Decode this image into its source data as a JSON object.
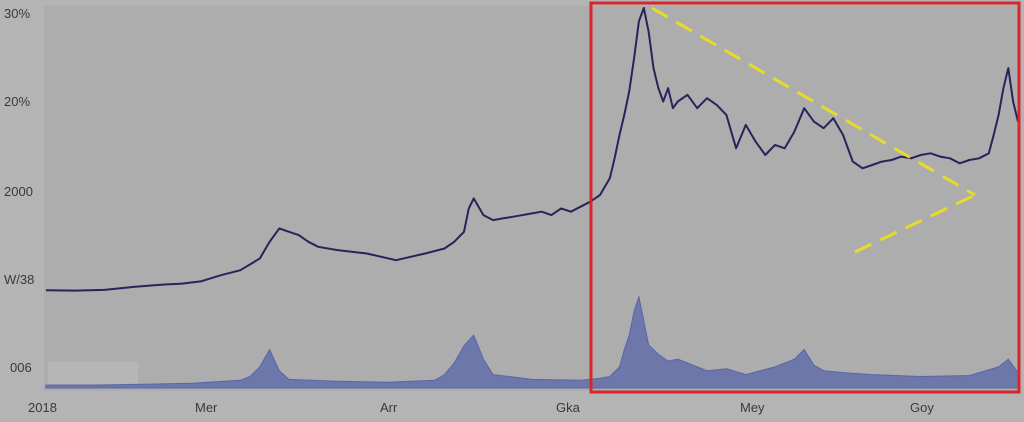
{
  "chart_data": {
    "type": "line",
    "y_tick_labels": [
      "30%",
      "20%",
      "2000",
      "W/38",
      "006"
    ],
    "x_tick_labels": [
      "2018",
      "Mer",
      "Arr",
      "Gka",
      "Mey",
      "Goy"
    ],
    "price_series": {
      "x": [
        0,
        3,
        6,
        9,
        12,
        14,
        16,
        18,
        20,
        22,
        23,
        24,
        25,
        26,
        27,
        28,
        30,
        33,
        36,
        39,
        41,
        42,
        43,
        43.5,
        44,
        45,
        46,
        47,
        48,
        50,
        51,
        52,
        53,
        54,
        55,
        56,
        57,
        58,
        58.5,
        59,
        59.5,
        60,
        60.5,
        61,
        61.5,
        62,
        62.5,
        63,
        63.5,
        64,
        64.5,
        65,
        66,
        67,
        68,
        69,
        70,
        71,
        72,
        73,
        74,
        75,
        76,
        77,
        78,
        79,
        80,
        81,
        82,
        83,
        84,
        85,
        86,
        87,
        88,
        89,
        90,
        91,
        92,
        93,
        94,
        95,
        96,
        97,
        97.5,
        98,
        98.5,
        99,
        99.5,
        100
      ],
      "y": [
        15.5,
        15.4,
        15.6,
        16.5,
        17.2,
        17.5,
        18.2,
        20.0,
        21.5,
        25.0,
        30.0,
        34.0,
        33.0,
        32.0,
        30.0,
        28.5,
        27.5,
        26.5,
        24.5,
        26.5,
        28.0,
        30.0,
        33.0,
        40.0,
        43.0,
        38.0,
        36.5,
        37.0,
        37.5,
        38.5,
        39.0,
        38.0,
        40.0,
        39.0,
        40.5,
        42.0,
        44.0,
        49.0,
        55.0,
        62.0,
        68.0,
        75.0,
        85.0,
        96.0,
        100.0,
        93.0,
        82.0,
        76.0,
        72.0,
        76.0,
        70.0,
        72.0,
        74.0,
        70.0,
        73.0,
        71.0,
        68.0,
        58.0,
        65.0,
        60.0,
        56.0,
        59.0,
        58.0,
        63.0,
        70.0,
        66.0,
        64.0,
        67.0,
        62.0,
        54.0,
        52.0,
        53.0,
        54.0,
        54.5,
        55.5,
        55.0,
        56.0,
        56.5,
        55.5,
        55.0,
        53.5,
        54.5,
        55.0,
        56.5,
        62.0,
        68.0,
        76.0,
        82.0,
        72.0,
        66.0
      ]
    },
    "volume_series": {
      "x": [
        0,
        5,
        10,
        15,
        20,
        21,
        22,
        23,
        24,
        25,
        30,
        35,
        40,
        41,
        42,
        43,
        44,
        45,
        46,
        50,
        55,
        57,
        58,
        59,
        59.5,
        60,
        60.5,
        61,
        61.5,
        62,
        63,
        64,
        65,
        67,
        68,
        70,
        72,
        75,
        77,
        78,
        79,
        80,
        82,
        85,
        90,
        95,
        98,
        99,
        100
      ],
      "y": [
        3,
        3,
        4,
        5,
        8,
        12,
        22,
        40,
        18,
        9,
        7,
        6,
        8,
        14,
        26,
        44,
        55,
        30,
        14,
        9,
        8,
        10,
        12,
        22,
        40,
        55,
        80,
        95,
        70,
        45,
        35,
        28,
        30,
        22,
        18,
        20,
        14,
        22,
        30,
        40,
        24,
        18,
        16,
        14,
        12,
        13,
        22,
        30,
        16
      ]
    },
    "annotations": {
      "highlight_box": {
        "color": "#d8262b"
      },
      "triangle_lines": {
        "color": "#e6dc28",
        "style": "dashed"
      }
    },
    "colors": {
      "line": "#26245a",
      "volume": "#5a66a8",
      "background": "#b4b4b4"
    }
  }
}
